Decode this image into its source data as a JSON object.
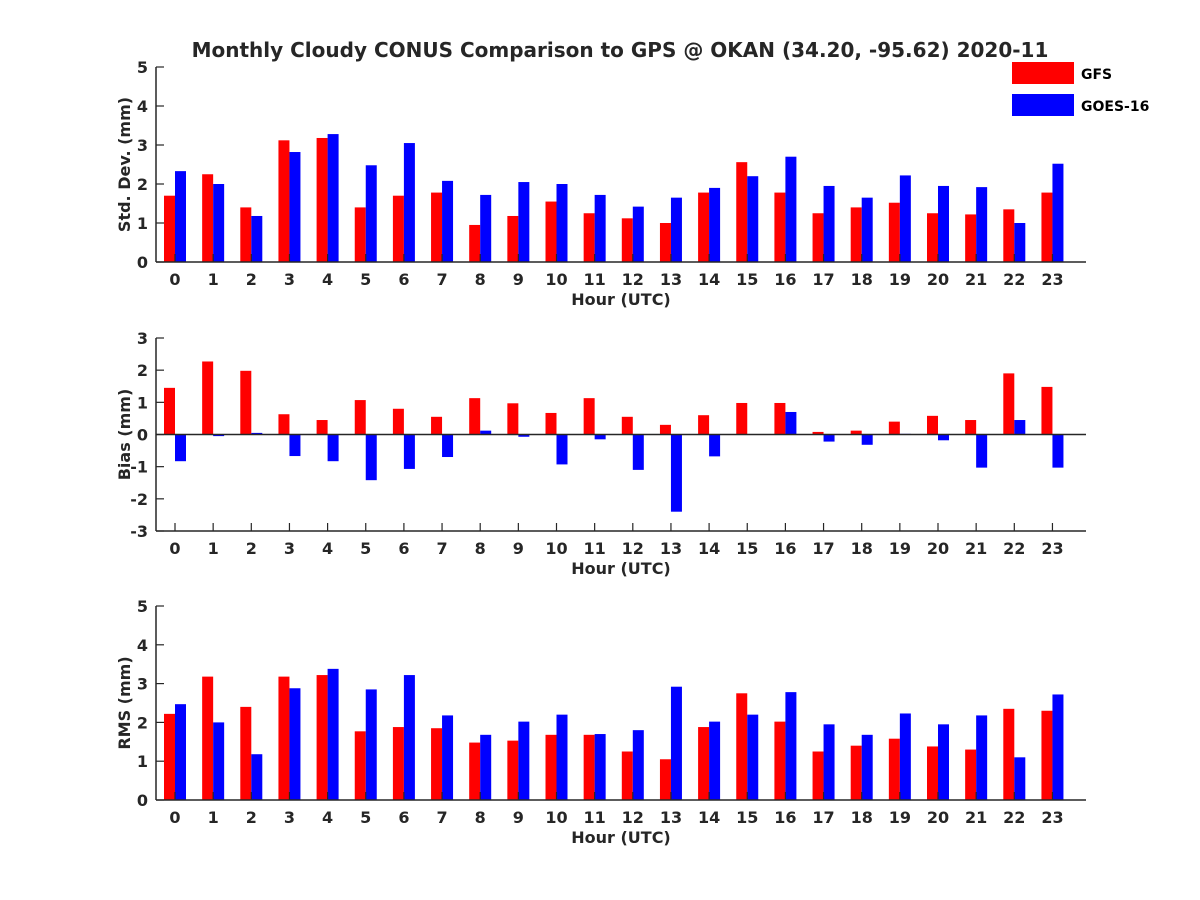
{
  "figure": {
    "title": "Monthly Cloudy CONUS Comparison to GPS @ OKAN (34.20, -95.62) 2020-11"
  },
  "legend": {
    "placement": "top-right",
    "items": [
      {
        "label": "GFS",
        "color": "#ff0000"
      },
      {
        "label": "GOES-16",
        "color": "#0000ff"
      }
    ]
  },
  "chart_data": [
    {
      "type": "bar",
      "ylabel": "Std. Dev. (mm)",
      "xlabel": "Hour (UTC)",
      "ylim": [
        0,
        5
      ],
      "yticks": [
        0,
        1,
        2,
        3,
        4,
        5
      ],
      "categories": [
        "0",
        "1",
        "2",
        "3",
        "4",
        "5",
        "6",
        "7",
        "8",
        "9",
        "10",
        "11",
        "12",
        "13",
        "14",
        "15",
        "16",
        "17",
        "18",
        "19",
        "20",
        "21",
        "22",
        "23"
      ],
      "series": [
        {
          "name": "GFS",
          "color": "#ff0000",
          "values": [
            1.7,
            2.25,
            1.4,
            3.12,
            3.18,
            1.4,
            1.7,
            1.78,
            0.95,
            1.18,
            1.55,
            1.25,
            1.12,
            1.0,
            1.78,
            2.56,
            1.78,
            1.25,
            1.4,
            1.52,
            1.25,
            1.22,
            1.35,
            1.78
          ]
        },
        {
          "name": "GOES-16",
          "color": "#0000ff",
          "values": [
            2.33,
            2.0,
            1.18,
            2.82,
            3.28,
            2.48,
            3.05,
            2.08,
            1.72,
            2.05,
            2.0,
            1.72,
            1.42,
            1.65,
            1.9,
            2.2,
            2.7,
            1.95,
            1.65,
            2.22,
            1.95,
            1.92,
            1.0,
            2.52
          ]
        }
      ]
    },
    {
      "type": "bar",
      "ylabel": "Bias (mm)",
      "xlabel": "Hour (UTC)",
      "ylim": [
        -3,
        3
      ],
      "yticks": [
        -3,
        -2,
        -1,
        0,
        1,
        2,
        3
      ],
      "categories": [
        "0",
        "1",
        "2",
        "3",
        "4",
        "5",
        "6",
        "7",
        "8",
        "9",
        "10",
        "11",
        "12",
        "13",
        "14",
        "15",
        "16",
        "17",
        "18",
        "19",
        "20",
        "21",
        "22",
        "23"
      ],
      "series": [
        {
          "name": "GFS",
          "color": "#ff0000",
          "values": [
            1.45,
            2.27,
            1.98,
            0.63,
            0.45,
            1.07,
            0.8,
            0.55,
            1.13,
            0.97,
            0.67,
            1.13,
            0.55,
            0.3,
            0.6,
            0.98,
            0.98,
            0.08,
            0.12,
            0.4,
            0.58,
            0.45,
            1.9,
            1.48
          ]
        },
        {
          "name": "GOES-16",
          "color": "#0000ff",
          "values": [
            -0.83,
            -0.05,
            0.05,
            -0.67,
            -0.83,
            -1.42,
            -1.07,
            -0.7,
            0.12,
            -0.07,
            -0.93,
            -0.15,
            -1.1,
            -2.4,
            -0.68,
            0.0,
            0.7,
            -0.22,
            -0.32,
            0.02,
            -0.18,
            -1.03,
            0.45,
            -1.03
          ]
        }
      ]
    },
    {
      "type": "bar",
      "ylabel": "RMS (mm)",
      "xlabel": "Hour (UTC)",
      "ylim": [
        0,
        5
      ],
      "yticks": [
        0,
        1,
        2,
        3,
        4,
        5
      ],
      "categories": [
        "0",
        "1",
        "2",
        "3",
        "4",
        "5",
        "6",
        "7",
        "8",
        "9",
        "10",
        "11",
        "12",
        "13",
        "14",
        "15",
        "16",
        "17",
        "18",
        "19",
        "20",
        "21",
        "22",
        "23"
      ],
      "series": [
        {
          "name": "GFS",
          "color": "#ff0000",
          "values": [
            2.22,
            3.18,
            2.4,
            3.18,
            3.22,
            1.77,
            1.88,
            1.85,
            1.48,
            1.53,
            1.68,
            1.68,
            1.25,
            1.05,
            1.88,
            2.75,
            2.02,
            1.25,
            1.4,
            1.58,
            1.38,
            1.3,
            2.35,
            2.3
          ]
        },
        {
          "name": "GOES-16",
          "color": "#0000ff",
          "values": [
            2.47,
            2.0,
            1.18,
            2.88,
            3.38,
            2.85,
            3.22,
            2.18,
            1.68,
            2.02,
            2.2,
            1.7,
            1.8,
            2.92,
            2.02,
            2.2,
            2.78,
            1.95,
            1.68,
            2.23,
            1.95,
            2.18,
            1.1,
            2.72
          ]
        }
      ]
    }
  ]
}
